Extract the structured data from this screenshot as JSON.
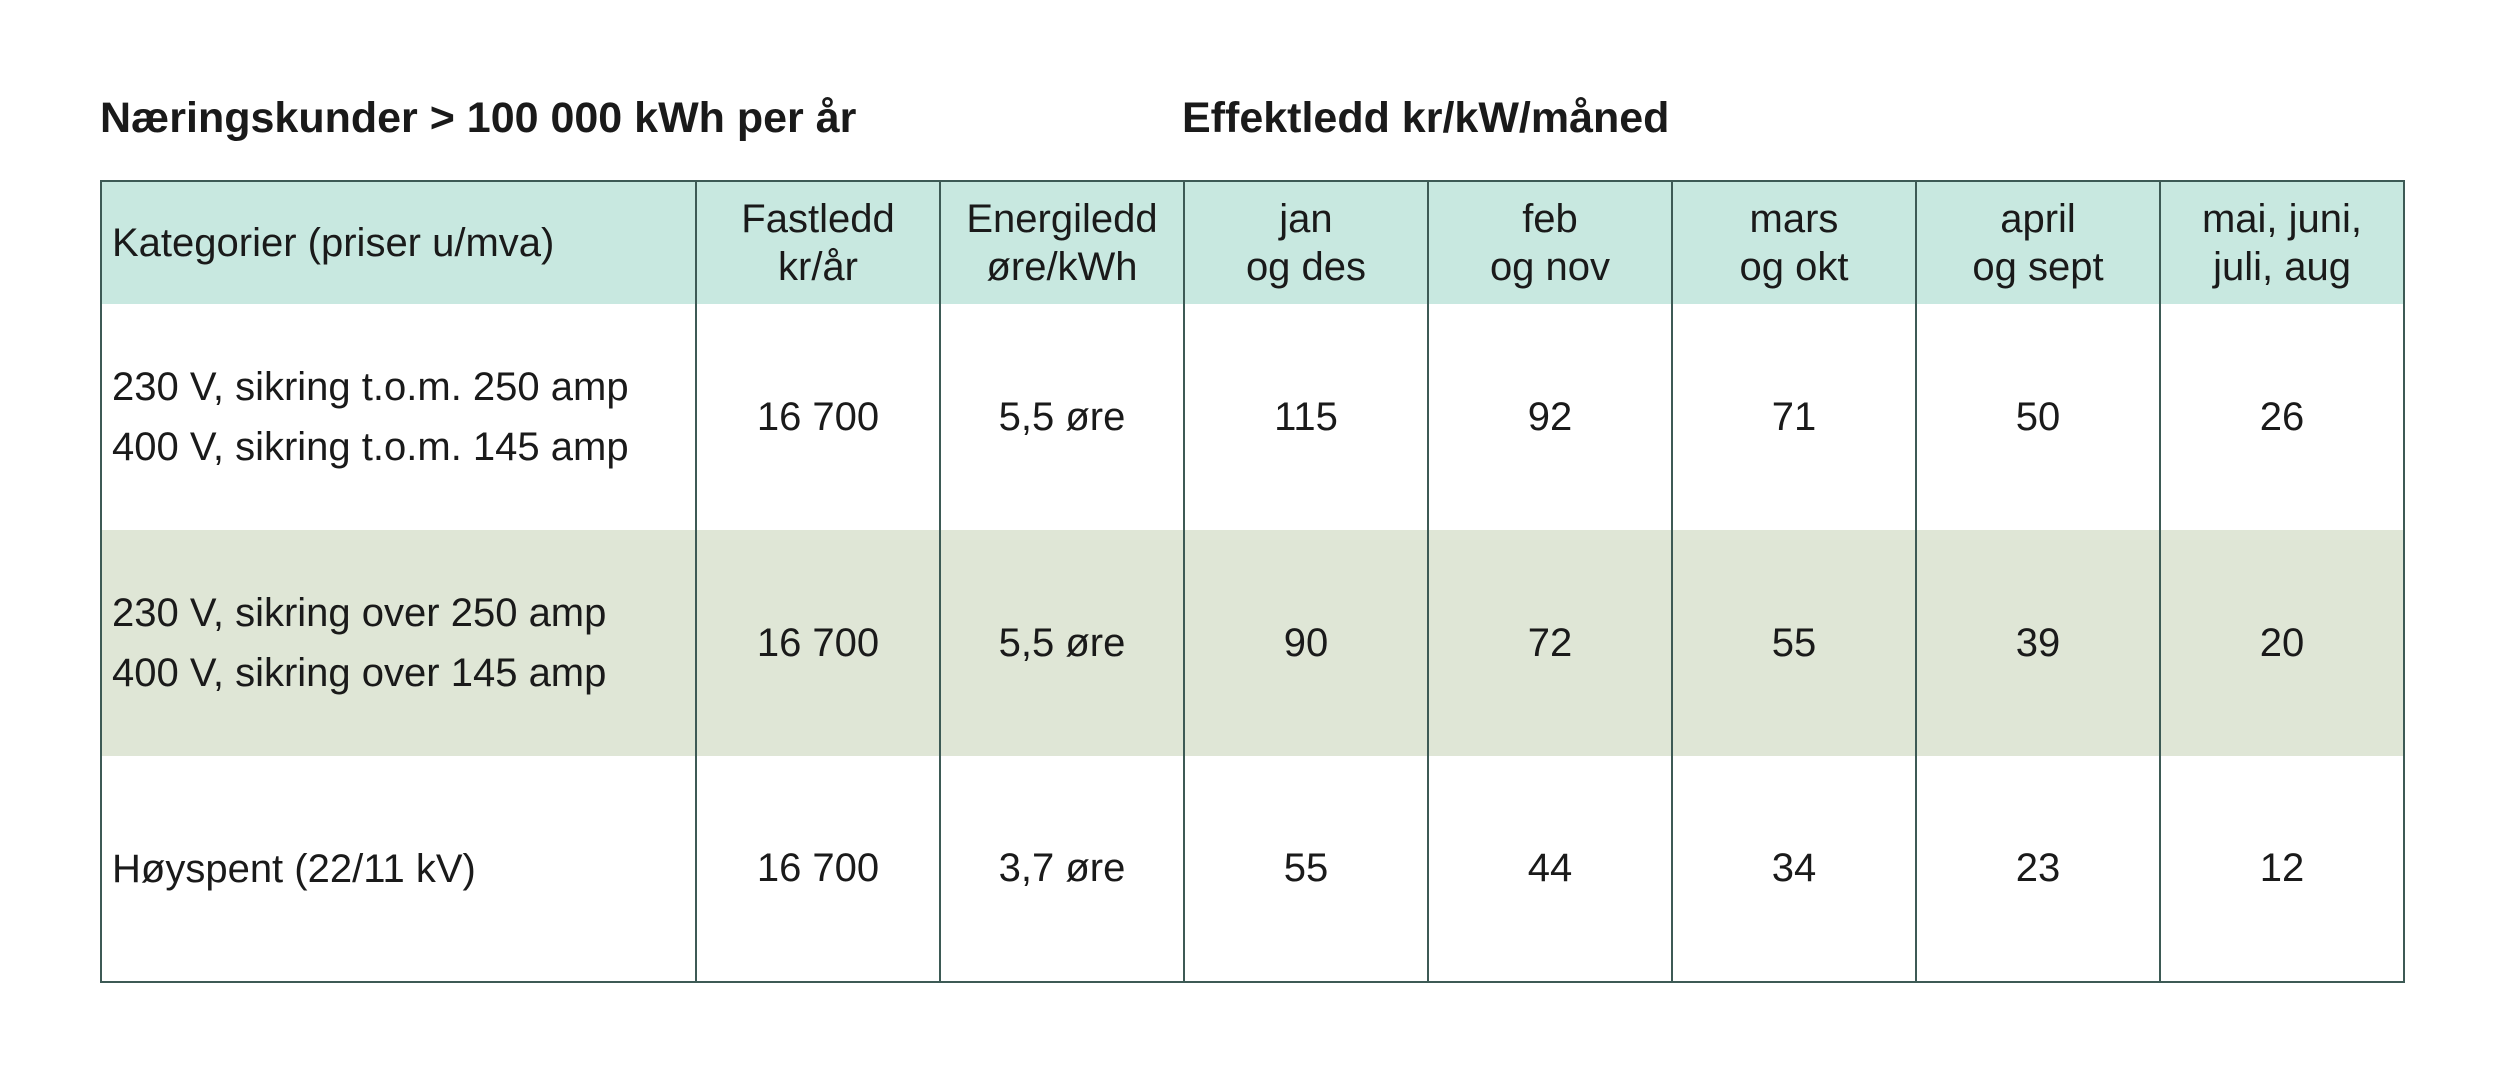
{
  "title_left": "Næringskunder > 100 000 kWh per år",
  "title_right": "Effektledd kr/kW/måned",
  "table": {
    "headers": [
      {
        "lines": [
          "Kategorier (priser u/mva)"
        ]
      },
      {
        "lines": [
          "Fastledd",
          "kr/år"
        ]
      },
      {
        "lines": [
          "Energiledd",
          "øre/kWh"
        ]
      },
      {
        "lines": [
          "jan",
          "og des"
        ]
      },
      {
        "lines": [
          "feb",
          "og nov"
        ]
      },
      {
        "lines": [
          "mars",
          "og okt"
        ]
      },
      {
        "lines": [
          "april",
          "og sept"
        ]
      },
      {
        "lines": [
          "mai, juni,",
          "juli, aug"
        ]
      }
    ],
    "rows": [
      {
        "category": [
          "230 V, sikring t.o.m. 250 amp",
          "400 V, sikring t.o.m. 145 amp"
        ],
        "fastledd": "16 700",
        "energiledd": "5,5 øre",
        "effekt": [
          "115",
          "92",
          "71",
          "50",
          "26"
        ]
      },
      {
        "category": [
          "230 V, sikring over 250 amp",
          "400 V, sikring over 145 amp"
        ],
        "fastledd": "16 700",
        "energiledd": "5,5 øre",
        "effekt": [
          "90",
          "72",
          "55",
          "39",
          "20"
        ]
      },
      {
        "category": [
          "Høyspent (22/11 kV)"
        ],
        "fastledd": "16 700",
        "energiledd": "3,7 øre",
        "effekt": [
          "55",
          "44",
          "34",
          "23",
          "12"
        ]
      }
    ]
  },
  "colors": {
    "header_bg": "#c8e8e0",
    "shaded_row_bg": "#dfe6d6",
    "border": "#3d5a55"
  }
}
